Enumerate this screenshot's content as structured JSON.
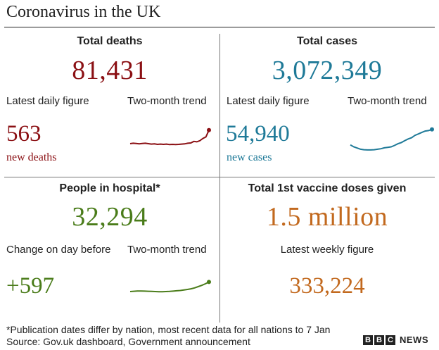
{
  "title": "Coronavirus in the UK",
  "colors": {
    "deaths": "#8b1014",
    "cases": "#1f7a98",
    "hospital": "#4a7c1a",
    "vaccine": "#c2691e"
  },
  "deaths": {
    "heading": "Total deaths",
    "total": "81,431",
    "daily_label": "Latest daily figure",
    "trend_label": "Two-month trend",
    "daily_value": "563",
    "daily_unit": "new deaths",
    "trend": [
      0.25,
      0.27,
      0.26,
      0.24,
      0.26,
      0.27,
      0.25,
      0.23,
      0.24,
      0.22,
      0.23,
      0.22,
      0.23,
      0.21,
      0.22,
      0.21,
      0.22,
      0.23,
      0.24,
      0.27,
      0.28,
      0.35,
      0.33,
      0.38,
      0.48,
      0.55,
      0.85
    ]
  },
  "cases": {
    "heading": "Total cases",
    "total": "3,072,349",
    "daily_label": "Latest daily figure",
    "trend_label": "Two-month trend",
    "daily_value": "54,940",
    "daily_unit": "new cases",
    "trend": [
      0.3,
      0.22,
      0.17,
      0.12,
      0.1,
      0.09,
      0.09,
      0.1,
      0.12,
      0.14,
      0.18,
      0.2,
      0.22,
      0.28,
      0.35,
      0.4,
      0.48,
      0.55,
      0.6,
      0.7,
      0.76,
      0.82,
      0.88,
      0.9,
      0.95
    ]
  },
  "hospital": {
    "heading": "People in hospital*",
    "total": "32,294",
    "daily_label": "Change on day before",
    "trend_label": "Two-month trend",
    "daily_value": "+597",
    "trend": [
      0.18,
      0.2,
      0.22,
      0.22,
      0.21,
      0.2,
      0.19,
      0.18,
      0.17,
      0.17,
      0.18,
      0.19,
      0.21,
      0.23,
      0.25,
      0.28,
      0.32,
      0.36,
      0.42,
      0.5,
      0.58,
      0.68,
      0.8
    ]
  },
  "vaccine": {
    "heading": "Total 1st vaccine doses given",
    "total": "1.5 million",
    "weekly_label": "Latest weekly figure",
    "weekly_value": "333,224"
  },
  "footer": {
    "note": "*Publication dates differ by nation, most recent data for all nations to 7 Jan",
    "source": "Source: Gov.uk dashboard, Government announcement"
  },
  "logo": {
    "letters": [
      "B",
      "B",
      "C"
    ],
    "news": "NEWS"
  }
}
